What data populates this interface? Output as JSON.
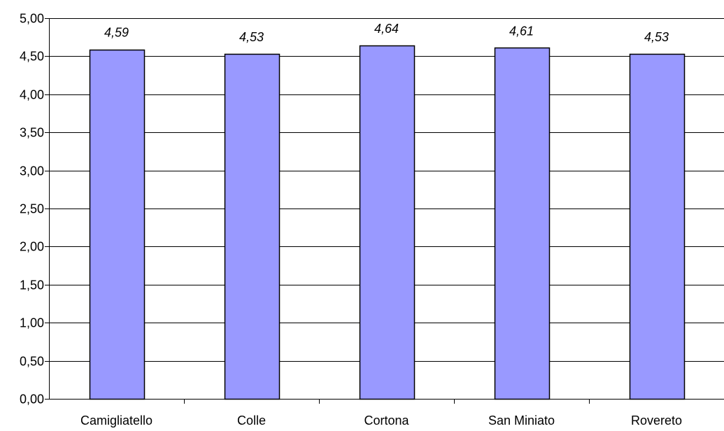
{
  "chart_data": {
    "type": "bar",
    "categories": [
      "Camigliatello",
      "Colle",
      "Cortona",
      "San Miniato",
      "Rovereto"
    ],
    "values": [
      4.59,
      4.53,
      4.64,
      4.61,
      4.53
    ],
    "data_labels": [
      "4,59",
      "4,53",
      "4,64",
      "4,61",
      "4,53"
    ],
    "ylim": [
      0,
      5
    ],
    "yticks": [
      0,
      0.5,
      1,
      1.5,
      2,
      2.5,
      3,
      3.5,
      4,
      4.5,
      5
    ],
    "ytick_labels": [
      "0,00",
      "0,50",
      "1,00",
      "1,50",
      "2,00",
      "2,50",
      "3,00",
      "3,50",
      "4,00",
      "4,50",
      "5,00"
    ],
    "grid": true,
    "legend": "none",
    "bar_color": "#9999ff",
    "bar_edge_color": "#000000",
    "title": "",
    "xlabel": "",
    "ylabel": ""
  }
}
